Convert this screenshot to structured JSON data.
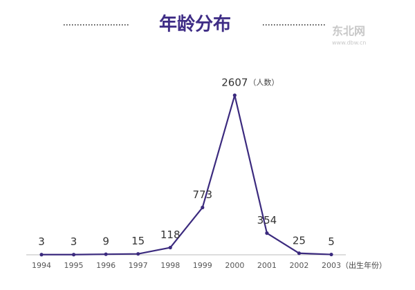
{
  "chart_data": {
    "type": "line",
    "title": "年龄分布",
    "categories": [
      "1994",
      "1995",
      "1996",
      "1997",
      "1998",
      "1999",
      "2000",
      "2001",
      "2002",
      "2003"
    ],
    "values": [
      3,
      3,
      9,
      15,
      118,
      773,
      2607,
      354,
      25,
      5
    ],
    "color": "#3b2a7e",
    "value_unit_note": "（人数）",
    "x_axis_note": "（出生年份）",
    "watermark": "东北网",
    "watermark_url": "www.dbw.cn"
  }
}
